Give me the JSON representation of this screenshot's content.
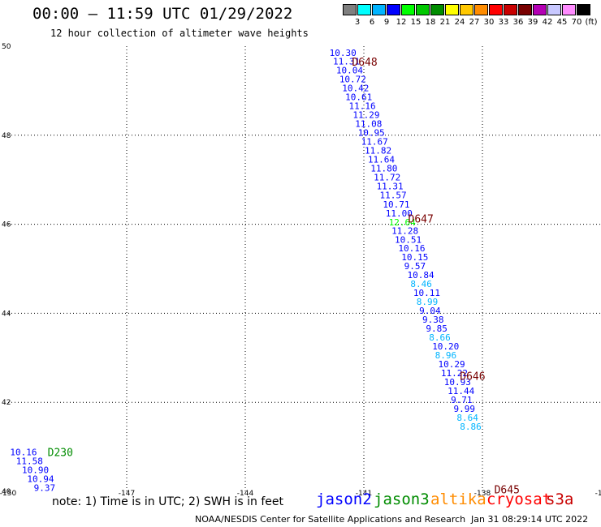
{
  "header": {
    "title": "00:00 — 11:59 UTC 01/29/2022",
    "subtitle": "12 hour collection of altimeter wave heights"
  },
  "colorbar": {
    "colors": [
      "#7f7f7f",
      "#00ffff",
      "#00b4ff",
      "#0000ff",
      "#00ff00",
      "#00c800",
      "#008c00",
      "#ffff00",
      "#ffc800",
      "#ff8c00",
      "#ff0000",
      "#c80000",
      "#780000",
      "#b400b4",
      "#c8c8ff",
      "#ff8cff",
      "#000000"
    ],
    "labels": [
      "3",
      "6",
      "9",
      "12",
      "15",
      "18",
      "21",
      "24",
      "27",
      "30",
      "33",
      "36",
      "39",
      "42",
      "45",
      "70",
      "(ft)"
    ]
  },
  "axes": {
    "lon_ticks": [
      "-150",
      "-147",
      "-144",
      "-141",
      "-138",
      "-13"
    ],
    "lat_ticks": [
      "50",
      "48",
      "46",
      "44",
      "42",
      "40"
    ]
  },
  "passes": [
    {
      "label": "D648",
      "lon": -141.3,
      "lat": 49.65,
      "color": "#780000"
    },
    {
      "label": "D647",
      "lon": -139.88,
      "lat": 46.13,
      "color": "#780000"
    },
    {
      "label": "D646",
      "lon": -138.57,
      "lat": 42.6,
      "color": "#780000"
    },
    {
      "label": "D645",
      "lon": -137.7,
      "lat": 40.05,
      "color": "#780000"
    },
    {
      "label": "D230",
      "lon": -149.0,
      "lat": 40.88,
      "color": "#008c00"
    }
  ],
  "observations": [
    {
      "lon": -141.87,
      "lat": 49.85,
      "value": "10.30",
      "color": "#0000ff"
    },
    {
      "lon": -141.78,
      "lat": 49.66,
      "value": "11.31",
      "color": "#0000ff"
    },
    {
      "lon": -141.7,
      "lat": 49.46,
      "value": "10.04",
      "color": "#0000ff"
    },
    {
      "lon": -141.62,
      "lat": 49.26,
      "value": "10.72",
      "color": "#0000ff"
    },
    {
      "lon": -141.55,
      "lat": 49.06,
      "value": "10.42",
      "color": "#0000ff"
    },
    {
      "lon": -141.47,
      "lat": 48.86,
      "value": "10.61",
      "color": "#0000ff"
    },
    {
      "lon": -141.38,
      "lat": 48.66,
      "value": "11.16",
      "color": "#0000ff"
    },
    {
      "lon": -141.28,
      "lat": 48.46,
      "value": "11.29",
      "color": "#0000ff"
    },
    {
      "lon": -141.22,
      "lat": 48.26,
      "value": "11.08",
      "color": "#0000ff"
    },
    {
      "lon": -141.15,
      "lat": 48.06,
      "value": "10.95",
      "color": "#0000ff"
    },
    {
      "lon": -141.07,
      "lat": 47.86,
      "value": "11.67",
      "color": "#0000ff"
    },
    {
      "lon": -140.98,
      "lat": 47.66,
      "value": "11.82",
      "color": "#0000ff"
    },
    {
      "lon": -140.9,
      "lat": 47.46,
      "value": "11.64",
      "color": "#0000ff"
    },
    {
      "lon": -140.83,
      "lat": 47.26,
      "value": "11.80",
      "color": "#0000ff"
    },
    {
      "lon": -140.75,
      "lat": 47.06,
      "value": "11.72",
      "color": "#0000ff"
    },
    {
      "lon": -140.68,
      "lat": 46.86,
      "value": "11.31",
      "color": "#0000ff"
    },
    {
      "lon": -140.6,
      "lat": 46.66,
      "value": "11.57",
      "color": "#0000ff"
    },
    {
      "lon": -140.52,
      "lat": 46.45,
      "value": "10.71",
      "color": "#0000ff"
    },
    {
      "lon": -140.45,
      "lat": 46.25,
      "value": "11.00",
      "color": "#0000ff"
    },
    {
      "lon": -140.37,
      "lat": 46.05,
      "value": "12.64",
      "color": "#00ff00"
    },
    {
      "lon": -140.3,
      "lat": 45.86,
      "value": "11.28",
      "color": "#0000ff"
    },
    {
      "lon": -140.22,
      "lat": 45.66,
      "value": "10.51",
      "color": "#0000ff"
    },
    {
      "lon": -140.13,
      "lat": 45.46,
      "value": "10.16",
      "color": "#0000ff"
    },
    {
      "lon": -140.05,
      "lat": 45.26,
      "value": "10.15",
      "color": "#0000ff"
    },
    {
      "lon": -139.98,
      "lat": 45.06,
      "value": "9.57",
      "color": "#0000ff"
    },
    {
      "lon": -139.9,
      "lat": 44.86,
      "value": "10.84",
      "color": "#0000ff"
    },
    {
      "lon": -139.82,
      "lat": 44.66,
      "value": "8.46",
      "color": "#00b4ff"
    },
    {
      "lon": -139.75,
      "lat": 44.46,
      "value": "10.11",
      "color": "#0000ff"
    },
    {
      "lon": -139.67,
      "lat": 44.26,
      "value": "8.99",
      "color": "#00b4ff"
    },
    {
      "lon": -139.6,
      "lat": 44.06,
      "value": "9.04",
      "color": "#0000ff"
    },
    {
      "lon": -139.52,
      "lat": 43.86,
      "value": "9.38",
      "color": "#0000ff"
    },
    {
      "lon": -139.43,
      "lat": 43.66,
      "value": "9.85",
      "color": "#0000ff"
    },
    {
      "lon": -139.35,
      "lat": 43.46,
      "value": "8.66",
      "color": "#00b4ff"
    },
    {
      "lon": -139.27,
      "lat": 43.26,
      "value": "10.20",
      "color": "#0000ff"
    },
    {
      "lon": -139.2,
      "lat": 43.06,
      "value": "8.96",
      "color": "#00b4ff"
    },
    {
      "lon": -139.12,
      "lat": 42.86,
      "value": "10.29",
      "color": "#0000ff"
    },
    {
      "lon": -139.05,
      "lat": 42.66,
      "value": "11.22",
      "color": "#0000ff"
    },
    {
      "lon": -138.97,
      "lat": 42.46,
      "value": "10.93",
      "color": "#0000ff"
    },
    {
      "lon": -138.88,
      "lat": 42.26,
      "value": "11.44",
      "color": "#0000ff"
    },
    {
      "lon": -138.8,
      "lat": 42.06,
      "value": "9.71",
      "color": "#0000ff"
    },
    {
      "lon": -138.73,
      "lat": 41.86,
      "value": "9.99",
      "color": "#0000ff"
    },
    {
      "lon": -138.65,
      "lat": 41.66,
      "value": "8.64",
      "color": "#00b4ff"
    },
    {
      "lon": -138.57,
      "lat": 41.46,
      "value": "8.86",
      "color": "#00b4ff"
    },
    {
      "lon": -149.95,
      "lat": 40.88,
      "value": "10.16",
      "color": "#0000ff"
    },
    {
      "lon": -149.8,
      "lat": 40.68,
      "value": "11.58",
      "color": "#0000ff"
    },
    {
      "lon": -149.65,
      "lat": 40.48,
      "value": "10.90",
      "color": "#0000ff"
    },
    {
      "lon": -149.52,
      "lat": 40.28,
      "value": "10.94",
      "color": "#0000ff"
    },
    {
      "lon": -149.35,
      "lat": 40.08,
      "value": "9.37",
      "color": "#0000ff"
    }
  ],
  "footer": {
    "note": "note: 1) Time is in UTC; 2) SWH is in feet",
    "satellites": [
      {
        "name": "jason2",
        "color": "#0000ff"
      },
      {
        "name": "jason3",
        "color": "#008c00"
      },
      {
        "name": "altika",
        "color": "#ff8c00"
      },
      {
        "name": "cryosat",
        "color": "#ff0000"
      },
      {
        "name": "s3a",
        "color": "#c80000"
      }
    ],
    "credit": "NOAA/NESDIS Center for Satellite Applications and Research",
    "timestamp": "Jan 31 08:29:14 UTC 2022"
  }
}
